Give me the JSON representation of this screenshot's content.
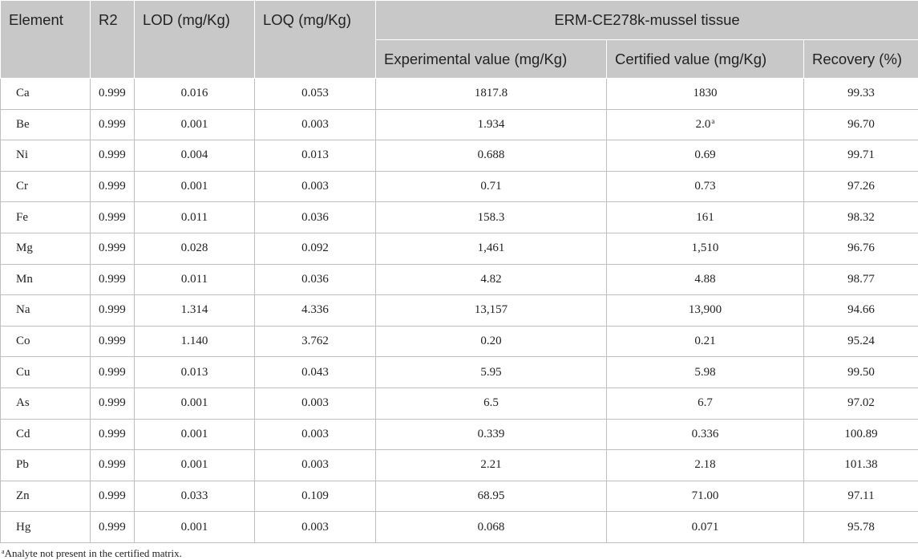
{
  "table": {
    "headers": {
      "element": "Element",
      "r2": "R2",
      "lod": "LOD (mg/Kg)",
      "loq": "LOQ (mg/Kg)",
      "group": "ERM-CE278k-mussel tissue",
      "experimental": "Experimental value (mg/Kg)",
      "certified": "Certified value (mg/Kg)",
      "recovery": "Recovery (%)"
    },
    "rows": [
      {
        "element": "Ca",
        "r2": "0.999",
        "lod": "0.016",
        "loq": "0.053",
        "experimental": "1817.8",
        "certified": "1830",
        "recovery": "99.33"
      },
      {
        "element": "Be",
        "r2": "0.999",
        "lod": "0.001",
        "loq": "0.003",
        "experimental": "1.934",
        "certified": "2.0",
        "certified_mark": "a",
        "recovery": "96.70"
      },
      {
        "element": "Ni",
        "r2": "0.999",
        "lod": "0.004",
        "loq": "0.013",
        "experimental": "0.688",
        "certified": "0.69",
        "recovery": "99.71"
      },
      {
        "element": "Cr",
        "r2": "0.999",
        "lod": "0.001",
        "loq": "0.003",
        "experimental": "0.71",
        "certified": "0.73",
        "recovery": "97.26"
      },
      {
        "element": "Fe",
        "r2": "0.999",
        "lod": "0.011",
        "loq": "0.036",
        "experimental": "158.3",
        "certified": "161",
        "recovery": "98.32"
      },
      {
        "element": "Mg",
        "r2": "0.999",
        "lod": "0.028",
        "loq": "0.092",
        "experimental": "1,461",
        "certified": "1,510",
        "recovery": "96.76"
      },
      {
        "element": "Mn",
        "r2": "0.999",
        "lod": "0.011",
        "loq": "0.036",
        "experimental": "4.82",
        "certified": "4.88",
        "recovery": "98.77"
      },
      {
        "element": "Na",
        "r2": "0.999",
        "lod": "1.314",
        "loq": "4.336",
        "experimental": "13,157",
        "certified": "13,900",
        "recovery": "94.66"
      },
      {
        "element": "Co",
        "r2": "0.999",
        "lod": "1.140",
        "loq": "3.762",
        "experimental": "0.20",
        "certified": "0.21",
        "recovery": "95.24"
      },
      {
        "element": "Cu",
        "r2": "0.999",
        "lod": "0.013",
        "loq": "0.043",
        "experimental": "5.95",
        "certified": "5.98",
        "recovery": "99.50"
      },
      {
        "element": "As",
        "r2": "0.999",
        "lod": "0.001",
        "loq": "0.003",
        "experimental": "6.5",
        "certified": "6.7",
        "recovery": "97.02"
      },
      {
        "element": "Cd",
        "r2": "0.999",
        "lod": "0.001",
        "loq": "0.003",
        "experimental": "0.339",
        "certified": "0.336",
        "recovery": "100.89"
      },
      {
        "element": "Pb",
        "r2": "0.999",
        "lod": "0.001",
        "loq": "0.003",
        "experimental": "2.21",
        "certified": "2.18",
        "recovery": "101.38"
      },
      {
        "element": "Zn",
        "r2": "0.999",
        "lod": "0.033",
        "loq": "0.109",
        "experimental": "68.95",
        "certified": "71.00",
        "recovery": "97.11"
      },
      {
        "element": "Hg",
        "r2": "0.999",
        "lod": "0.001",
        "loq": "0.003",
        "experimental": "0.068",
        "certified": "0.071",
        "recovery": "95.78"
      }
    ]
  },
  "footnote": {
    "mark": "a",
    "text": "Analyte not present in the certified matrix."
  }
}
